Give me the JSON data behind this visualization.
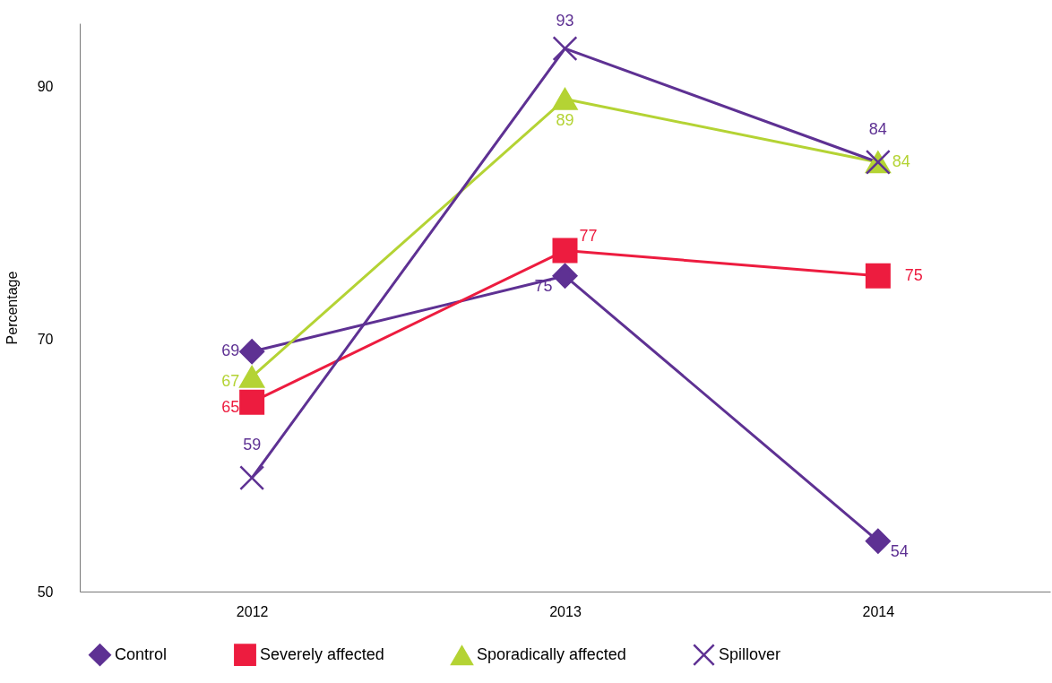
{
  "chart_data": {
    "type": "line",
    "ylabel": "Percentage",
    "categories": [
      "2012",
      "2013",
      "2014"
    ],
    "series": [
      {
        "name": "Control",
        "color": "#5e3193",
        "marker": "diamond",
        "values": [
          69,
          75,
          54
        ]
      },
      {
        "name": "Severely affected",
        "color": "#ed1c3f",
        "marker": "square",
        "values": [
          65,
          77,
          75
        ]
      },
      {
        "name": "Sporadically affected",
        "color": "#b4d334",
        "marker": "triangle",
        "values": [
          67,
          89,
          84
        ]
      },
      {
        "name": "Spillover",
        "color": "#5e3193",
        "marker": "cross",
        "values": [
          59,
          93,
          84
        ]
      }
    ],
    "ylim": [
      50,
      95
    ],
    "yticks": [
      50,
      70,
      90
    ],
    "grid": false,
    "legend": "bottom",
    "data_labels": true
  }
}
